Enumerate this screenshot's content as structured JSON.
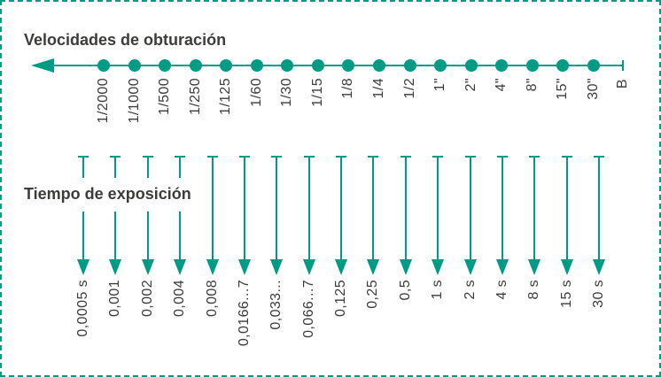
{
  "diagram": {
    "top_section": {
      "title": "Velocidades de obturación",
      "labels": [
        "1/2000",
        "1/1000",
        "1/500",
        "1/250",
        "1/125",
        "1/60",
        "1/30",
        "1/15",
        "1/8",
        "1/4",
        "1/2",
        "1\"",
        "2\"",
        "4\"",
        "8\"",
        "15\"",
        "30\""
      ],
      "end_label": "B"
    },
    "bottom_section": {
      "title": "Tiempo de exposición",
      "labels": [
        "0,0005 s",
        "0,001",
        "0,002",
        "0,004",
        "0,008",
        "0,0166...7",
        "0,033...",
        "0,066...7",
        "0,125",
        "0,25",
        "0,5",
        "1 s",
        "2 s",
        "4 s",
        "8 s",
        "15 s",
        "30 s"
      ]
    },
    "colors": {
      "accent": "#009b84",
      "text": "#3c3c3b",
      "background": "#ffffff"
    }
  }
}
